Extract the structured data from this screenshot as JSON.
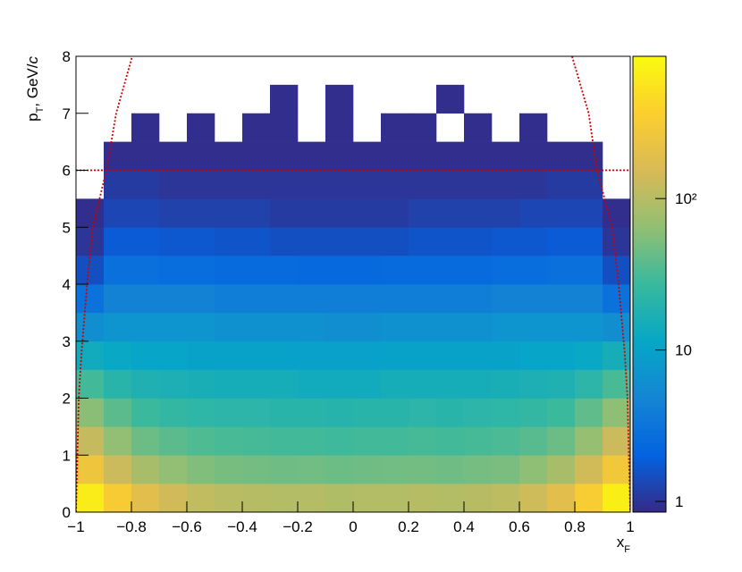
{
  "chart_data": {
    "type": "heatmap2d",
    "xlabel": [
      "x",
      "F"
    ],
    "ylabel": [
      "p",
      "T",
      ", GeV/",
      "c"
    ],
    "xlim": [
      -1,
      1
    ],
    "ylim": [
      0,
      8
    ],
    "xticks": [
      {
        "value": -1,
        "label": "−1"
      },
      {
        "value": -0.8,
        "label": "−0.8"
      },
      {
        "value": -0.6,
        "label": "−0.6"
      },
      {
        "value": -0.4,
        "label": "−0.4"
      },
      {
        "value": -0.2,
        "label": "−0.2"
      },
      0,
      0.2,
      0.4,
      0.6,
      0.8,
      1
    ],
    "yticks": [
      0,
      1,
      2,
      3,
      4,
      5,
      6,
      7,
      8
    ],
    "zlim": [
      0.85,
      870
    ],
    "zlog": true,
    "zticks": [
      1,
      10,
      {
        "value": 100,
        "label": "10²"
      }
    ],
    "colorscale": [
      "#352a87",
      "#0363e1",
      "#1485d4",
      "#06a7c6",
      "#38b99e",
      "#92bf73",
      "#d9ba56",
      "#fcce2e",
      "#f9fb0e"
    ],
    "xbins": [
      -1,
      -0.9,
      -0.8,
      -0.7,
      -0.6,
      -0.5,
      -0.4,
      -0.3,
      -0.2,
      -0.1,
      0,
      0.1,
      0.2,
      0.3,
      0.4,
      0.5,
      0.6,
      0.7,
      0.8,
      0.9,
      1
    ],
    "ybins": [
      0,
      0.5,
      1,
      1.5,
      2,
      2.5,
      3,
      3.5,
      4,
      4.5,
      5,
      5.5,
      6,
      6.5,
      7,
      7.5,
      8
    ],
    "z": [
      [
        650,
        320,
        190,
        140,
        115,
        105,
        100,
        95,
        98,
        92,
        95,
        97,
        100,
        96,
        102,
        110,
        135,
        190,
        330,
        680
      ],
      [
        260,
        130,
        85,
        65,
        55,
        50,
        48,
        46,
        47,
        45,
        46,
        47,
        48,
        46,
        49,
        52,
        62,
        85,
        140,
        280
      ],
      [
        120,
        65,
        45,
        38,
        34,
        32,
        31,
        30,
        30,
        29,
        30,
        30,
        31,
        30,
        31,
        33,
        37,
        45,
        68,
        130
      ],
      [
        60,
        38,
        28,
        25,
        23,
        22,
        22,
        21,
        21,
        20,
        21,
        21,
        22,
        21,
        22,
        23,
        25,
        28,
        40,
        62
      ],
      [
        30,
        21,
        18,
        17,
        16,
        15,
        15,
        15,
        14,
        14,
        14,
        15,
        15,
        15,
        15,
        16,
        17,
        18,
        22,
        32
      ],
      [
        14,
        12,
        11,
        11,
        10,
        10,
        10,
        10,
        9.5,
        9.5,
        9.5,
        10,
        10,
        10,
        10,
        10,
        11,
        11,
        12,
        15
      ],
      [
        6,
        7,
        7,
        7,
        7,
        6.5,
        6.5,
        6.5,
        6.5,
        6,
        6,
        6.5,
        6.5,
        6.5,
        6.5,
        7,
        7,
        7,
        7,
        6
      ],
      [
        3,
        4.5,
        4.5,
        4.5,
        4.5,
        4,
        4,
        4,
        4,
        4,
        4,
        4,
        4,
        4,
        4,
        4.5,
        4.5,
        4.5,
        4.5,
        3
      ],
      [
        1.5,
        2.8,
        2.8,
        2.7,
        2.7,
        2.5,
        2.5,
        2.5,
        2.4,
        2.4,
        2.4,
        2.5,
        2.5,
        2.5,
        2.5,
        2.6,
        2.7,
        2.8,
        2.8,
        1.5
      ],
      [
        1,
        1.8,
        1.8,
        1.7,
        1.7,
        1.6,
        1.6,
        1.5,
        1.5,
        1.5,
        1.5,
        1.5,
        1.6,
        1.6,
        1.6,
        1.7,
        1.7,
        1.8,
        1.8,
        1
      ],
      [
        0.9,
        1.3,
        1.3,
        1.2,
        1.2,
        1.2,
        1.2,
        1.1,
        1.1,
        1.1,
        1.1,
        1.1,
        1.2,
        1.2,
        1.2,
        1.2,
        1.3,
        1.3,
        1.3,
        0.9
      ],
      [
        null,
        1.1,
        1.1,
        1,
        1,
        1,
        1,
        1,
        1,
        1,
        1,
        1,
        1,
        1,
        1,
        1,
        1,
        1.1,
        1.1,
        null
      ],
      [
        null,
        0.9,
        0.9,
        0.9,
        0.9,
        0.9,
        0.9,
        0.9,
        0.9,
        0.9,
        0.9,
        0.9,
        0.9,
        0.9,
        0.9,
        0.9,
        0.9,
        0.9,
        0.9,
        null
      ],
      [
        null,
        null,
        0.9,
        null,
        0.9,
        null,
        0.9,
        0.9,
        null,
        0.9,
        null,
        0.9,
        0.9,
        null,
        0.9,
        null,
        0.9,
        null,
        null,
        null
      ],
      [
        null,
        null,
        null,
        null,
        null,
        null,
        null,
        0.9,
        null,
        0.9,
        null,
        null,
        null,
        0.9,
        null,
        null,
        null,
        null,
        null,
        null
      ],
      [
        null,
        null,
        null,
        null,
        null,
        null,
        null,
        null,
        null,
        null,
        null,
        null,
        null,
        null,
        null,
        null,
        null,
        null,
        null,
        null
      ]
    ],
    "lines": [
      {
        "color": "#cc0000",
        "x": [
          -1,
          -0.99,
          -0.98,
          -0.96,
          -0.94,
          -0.89,
          -0.855,
          -0.797
        ],
        "y": [
          0,
          2,
          2.8,
          4,
          5,
          6,
          7,
          8
        ]
      },
      {
        "color": "#cc0000",
        "x": [
          0.79,
          0.85,
          0.88,
          0.935,
          0.958,
          0.98,
          0.99,
          1
        ],
        "y": [
          8,
          7,
          6,
          5,
          4,
          2.8,
          2,
          0
        ]
      },
      {
        "color": "#cc0000",
        "x": [
          -1,
          1
        ],
        "y": [
          6,
          6
        ]
      }
    ]
  }
}
